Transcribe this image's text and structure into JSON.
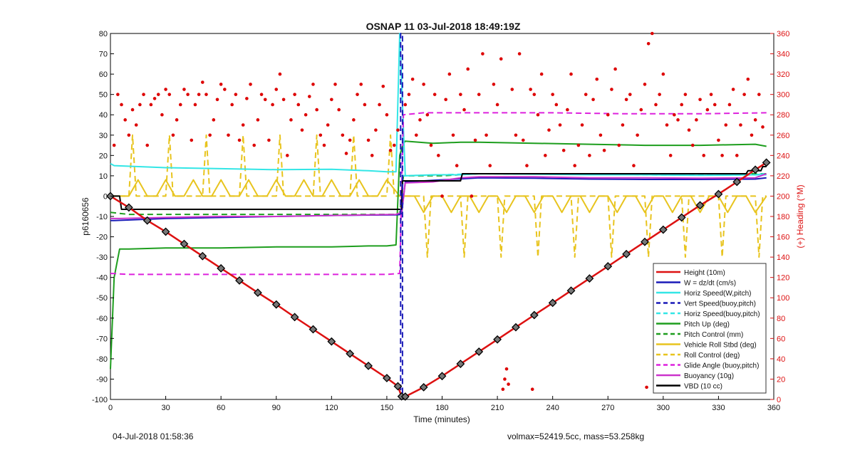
{
  "chart_data": {
    "type": "line",
    "title": "OSNAP 11 03-Jul-2018 18:49:19Z",
    "xlabel": "Time (minutes)",
    "ylabel": "p6160656",
    "y2label": "(+) Heading (°M)",
    "xlim": [
      0,
      360
    ],
    "ylim": [
      -100,
      80
    ],
    "y2lim": [
      0,
      360
    ],
    "x_ticks": [
      0,
      30,
      60,
      90,
      120,
      150,
      180,
      210,
      240,
      270,
      300,
      330,
      360
    ],
    "y_ticks": [
      -100,
      -90,
      -80,
      -70,
      -60,
      -50,
      -40,
      -30,
      -20,
      -10,
      0,
      10,
      20,
      30,
      40,
      50,
      60,
      70,
      80
    ],
    "y2_ticks": [
      0,
      20,
      40,
      60,
      80,
      100,
      120,
      140,
      160,
      180,
      200,
      220,
      240,
      260,
      280,
      300,
      320,
      340,
      360
    ],
    "grid": false,
    "legend_position": "bottom-right",
    "colors": {
      "height": "#dd1111",
      "w": "#1a1ab8",
      "horiz": "#33e6e6",
      "pitch": "#1e9e1e",
      "roll": "#e8c41e",
      "glide": "#dd22dd",
      "buoy": "#cc33cc",
      "vbd": "#000000",
      "heading_dots": "#dd0000",
      "heading_axis": "#dd1111"
    },
    "series": [
      {
        "name": "Height (10m)",
        "style": "solid",
        "color": "#dd1111",
        "x": [
          0,
          10,
          20,
          30,
          40,
          50,
          60,
          70,
          80,
          90,
          100,
          110,
          120,
          130,
          140,
          150,
          156,
          158,
          160,
          170,
          180,
          190,
          200,
          210,
          220,
          230,
          240,
          250,
          260,
          270,
          280,
          290,
          300,
          310,
          320,
          330,
          340,
          350,
          356
        ],
        "y": [
          0,
          -5.6,
          -12,
          -17.5,
          -23.5,
          -29.5,
          -35.5,
          -41.5,
          -47.5,
          -53.3,
          -59.5,
          -65.5,
          -71.5,
          -77.5,
          -83.5,
          -89.5,
          -93.5,
          -98.5,
          -98.6,
          -94,
          -88.5,
          -82.5,
          -76.5,
          -70.5,
          -64.5,
          -58.5,
          -52.5,
          -46.5,
          -40.5,
          -34.5,
          -28.5,
          -22.5,
          -16.5,
          -10.5,
          -4.5,
          1,
          7,
          13,
          16.5
        ]
      },
      {
        "name": "W = dz/dt (cm/s)",
        "style": "solid",
        "color": "#1a1ab8",
        "x": [
          0,
          2,
          30,
          60,
          90,
          120,
          155,
          158,
          160,
          175,
          190,
          200,
          230,
          260,
          290,
          320,
          350,
          356
        ],
        "y": [
          -12,
          -12,
          -11,
          -10.5,
          -10,
          -9.5,
          -9.2,
          -9,
          7,
          7.8,
          8.5,
          9,
          8.8,
          8.4,
          8.2,
          8.2,
          8.4,
          9
        ]
      },
      {
        "name": "Horiz Speed(W,pitch)",
        "style": "solid",
        "color": "#33e6e6",
        "x": [
          0,
          2,
          30,
          60,
          90,
          120,
          140,
          150,
          155,
          157,
          160,
          175,
          190,
          200,
          230,
          260,
          290,
          320,
          350,
          355
        ],
        "y": [
          16,
          15,
          14,
          13.5,
          13,
          13.2,
          12.5,
          12,
          12,
          80,
          10,
          10.5,
          10.5,
          11,
          10.8,
          10.5,
          10.5,
          10.2,
          10.5,
          11
        ]
      },
      {
        "name": "Vert Speed(buoy,pitch)",
        "style": "dash",
        "color": "#1a1ab8",
        "x": [
          157.5,
          157.5,
          158.5,
          158.5
        ],
        "y": [
          -100,
          80,
          80,
          -100
        ]
      },
      {
        "name": "Horiz Speed(buoy,pitch)",
        "style": "dash",
        "color": "#33e6e6",
        "x": [
          158,
          180,
          200,
          240,
          280,
          320,
          356
        ],
        "y": [
          10,
          10.5,
          11,
          10.8,
          10.5,
          10.3,
          10.5
        ]
      },
      {
        "name": "Pitch Up (deg)",
        "style": "solid",
        "color": "#1e9e1e",
        "x": [
          0,
          2,
          5,
          10,
          30,
          60,
          90,
          120,
          140,
          150,
          155,
          157,
          159,
          160,
          175,
          190,
          200,
          230,
          260,
          290,
          320,
          350,
          356
        ],
        "y": [
          -85,
          -40,
          -26,
          -26,
          -25.5,
          -25.5,
          -25,
          -25,
          -24.5,
          -24.5,
          -24,
          20,
          26,
          27,
          26,
          26.5,
          26.5,
          26,
          25.5,
          25,
          25,
          25.5,
          24.5
        ]
      },
      {
        "name": "Pitch Control (mm)",
        "style": "dash",
        "color": "#1e9e1e",
        "x": [
          0,
          10,
          40,
          80,
          120,
          157,
          159,
          180,
          200,
          240,
          280,
          320,
          356
        ],
        "y": [
          -8,
          -9,
          -9,
          -9,
          -9,
          -9,
          10,
          10,
          11,
          11,
          11,
          11,
          11
        ]
      },
      {
        "name": "Vehicle Roll Stbd (deg)",
        "style": "solid",
        "color": "#e8c41e",
        "x": [
          0,
          10,
          15,
          20,
          25,
          30,
          35,
          40,
          45,
          50,
          55,
          60,
          65,
          70,
          75,
          80,
          85,
          90,
          95,
          100,
          105,
          110,
          115,
          120,
          125,
          130,
          135,
          140,
          145,
          150,
          157,
          160,
          165,
          170,
          175,
          180,
          185,
          190,
          195,
          200,
          205,
          210,
          215,
          220,
          225,
          230,
          235,
          240,
          245,
          250,
          255,
          260,
          265,
          270,
          275,
          280,
          285,
          290,
          295,
          300,
          305,
          310,
          315,
          320,
          325,
          330,
          335,
          340,
          345,
          350,
          356
        ],
        "y": [
          0,
          0,
          8,
          0,
          0,
          8,
          0,
          0,
          8,
          0,
          0,
          8,
          0,
          0,
          8,
          0,
          0,
          8,
          0,
          0,
          8,
          0,
          0,
          8,
          0,
          0,
          8,
          0,
          0,
          8,
          0,
          0,
          0,
          -8,
          0,
          0,
          -8,
          0,
          0,
          -8,
          0,
          0,
          -8,
          0,
          0,
          -8,
          0,
          0,
          -8,
          0,
          0,
          -8,
          0,
          0,
          -8,
          0,
          0,
          -8,
          0,
          0,
          -8,
          0,
          0,
          -8,
          0,
          0,
          -8,
          0,
          0,
          -8,
          0
        ]
      },
      {
        "name": "Roll Control (deg)",
        "style": "dash",
        "color": "#e8c41e",
        "x": [
          0,
          10,
          12,
          14,
          30,
          32,
          34,
          50,
          52,
          54,
          70,
          72,
          74,
          90,
          92,
          94,
          110,
          112,
          114,
          130,
          132,
          134,
          150,
          152,
          154,
          158,
          170,
          172,
          174,
          190,
          192,
          194,
          210,
          212,
          214,
          230,
          232,
          234,
          250,
          252,
          254,
          270,
          272,
          274,
          290,
          292,
          294,
          310,
          312,
          314,
          330,
          332,
          334,
          350,
          352,
          354,
          356
        ],
        "y": [
          0,
          0,
          30,
          0,
          0,
          30,
          0,
          0,
          30,
          0,
          0,
          30,
          0,
          0,
          30,
          0,
          0,
          30,
          0,
          0,
          30,
          0,
          0,
          30,
          0,
          0,
          0,
          -30,
          0,
          0,
          -30,
          0,
          0,
          -30,
          0,
          0,
          -30,
          0,
          0,
          -30,
          0,
          0,
          -30,
          0,
          0,
          -30,
          0,
          0,
          -30,
          0,
          0,
          -30,
          0,
          0,
          -30,
          0,
          0
        ]
      },
      {
        "name": "Glide Angle (buoy,pitch)",
        "style": "dash",
        "color": "#dd22dd",
        "x": [
          0,
          10,
          40,
          80,
          120,
          150,
          157,
          159,
          170,
          200,
          240,
          280,
          320,
          356
        ],
        "y": [
          -38,
          -38.5,
          -38.5,
          -38.5,
          -38.5,
          -38.5,
          -38,
          40,
          41,
          41,
          41,
          40.5,
          40.5,
          41
        ]
      },
      {
        "name": "Buoyancy (10g)",
        "style": "solid",
        "color": "#cc33cc",
        "x": [
          0,
          5,
          30,
          60,
          90,
          120,
          155,
          158,
          160,
          175,
          190,
          200,
          230,
          260,
          290,
          320,
          350,
          356
        ],
        "y": [
          -11,
          -11,
          -10.5,
          -10,
          -10,
          -9.5,
          -9,
          -8,
          6.5,
          7,
          9,
          9.5,
          9.5,
          9,
          9,
          8.8,
          9,
          11
        ]
      },
      {
        "name": "VBD (10 cc)",
        "style": "solid",
        "color": "#000000",
        "x": [
          0,
          5,
          6,
          157,
          158,
          158.5,
          190,
          191,
          345,
          346,
          353,
          354,
          356
        ],
        "y": [
          0,
          0,
          -6.5,
          -6.5,
          -6.5,
          7.5,
          7.5,
          11,
          11,
          12.5,
          12.5,
          14.5,
          14.5
        ]
      }
    ],
    "heading_dots": {
      "axis": "right",
      "x": [
        2,
        4,
        6,
        8,
        10,
        12,
        14,
        16,
        18,
        20,
        22,
        24,
        26,
        28,
        30,
        32,
        34,
        36,
        38,
        40,
        42,
        44,
        46,
        48,
        50,
        52,
        54,
        56,
        58,
        60,
        62,
        64,
        66,
        68,
        70,
        72,
        74,
        76,
        78,
        80,
        82,
        84,
        86,
        88,
        90,
        92,
        94,
        96,
        98,
        100,
        102,
        104,
        106,
        108,
        110,
        112,
        114,
        116,
        118,
        120,
        122,
        124,
        126,
        128,
        130,
        132,
        134,
        136,
        138,
        140,
        142,
        144,
        146,
        148,
        150,
        152,
        154,
        156,
        160,
        162,
        164,
        166,
        168,
        170,
        172,
        174,
        176,
        178,
        180,
        182,
        184,
        186,
        188,
        190,
        192,
        194,
        196,
        198,
        200,
        202,
        204,
        206,
        208,
        210,
        212,
        213,
        214,
        215,
        216,
        218,
        220,
        222,
        224,
        226,
        228,
        229,
        230,
        232,
        234,
        236,
        238,
        240,
        242,
        244,
        246,
        248,
        250,
        252,
        254,
        256,
        258,
        260,
        262,
        264,
        266,
        268,
        270,
        272,
        274,
        276,
        278,
        280,
        282,
        284,
        286,
        288,
        290,
        291,
        292,
        294,
        296,
        298,
        300,
        302,
        304,
        306,
        308,
        310,
        312,
        314,
        316,
        318,
        320,
        322,
        324,
        326,
        328,
        330,
        332,
        334,
        336,
        338,
        340,
        342,
        344,
        346,
        348,
        350,
        352,
        354
      ],
      "y": [
        250,
        300,
        290,
        275,
        260,
        285,
        270,
        290,
        300,
        250,
        290,
        296,
        300,
        280,
        305,
        300,
        260,
        275,
        290,
        305,
        300,
        255,
        290,
        300,
        312,
        300,
        260,
        275,
        295,
        310,
        305,
        260,
        290,
        300,
        255,
        270,
        296,
        310,
        250,
        275,
        300,
        295,
        255,
        290,
        305,
        320,
        295,
        240,
        275,
        300,
        290,
        265,
        280,
        298,
        310,
        285,
        260,
        250,
        270,
        295,
        310,
        285,
        260,
        242,
        255,
        275,
        300,
        310,
        290,
        255,
        240,
        265,
        290,
        308,
        280,
        245,
        250,
        265,
        290,
        300,
        315,
        260,
        275,
        310,
        280,
        250,
        300,
        240,
        200,
        295,
        320,
        260,
        230,
        300,
        285,
        325,
        200,
        255,
        300,
        340,
        260,
        230,
        310,
        290,
        335,
        10,
        20,
        30,
        15,
        305,
        260,
        340,
        255,
        230,
        305,
        10,
        300,
        280,
        320,
        240,
        265,
        300,
        290,
        270,
        245,
        285,
        320,
        230,
        250,
        270,
        300,
        240,
        295,
        315,
        260,
        245,
        280,
        305,
        325,
        250,
        270,
        295,
        300,
        230,
        260,
        285,
        310,
        12,
        350,
        360,
        290,
        300,
        320,
        270,
        240,
        280,
        275,
        290,
        300,
        265,
        250,
        275,
        295,
        240,
        285,
        300,
        290,
        255,
        240,
        270,
        290,
        305,
        240,
        270,
        300,
        315,
        260,
        275,
        300,
        268
      ]
    }
  },
  "footer": {
    "left": "04-Jul-2018 01:58:36",
    "right": "volmax=52419.5cc, mass=53.258kg"
  }
}
